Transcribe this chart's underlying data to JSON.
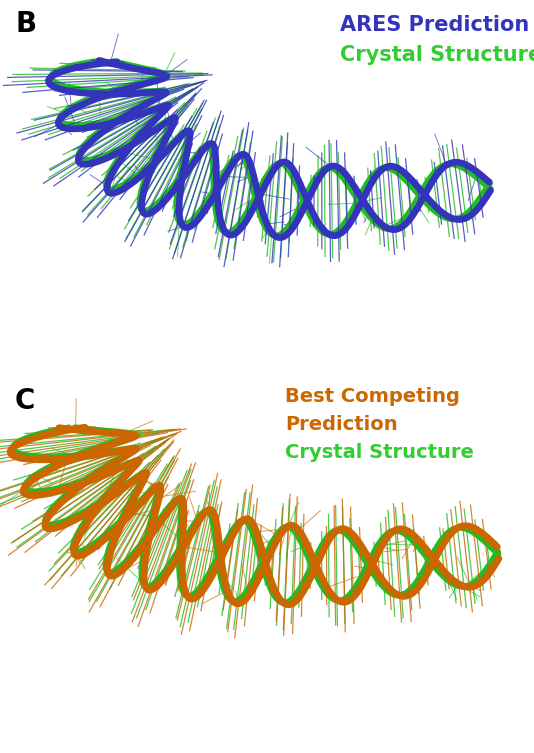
{
  "panel_B_label": "B",
  "panel_C_label": "C",
  "panel_B_title_line1": "ARES Prediction",
  "panel_B_title_line2": "Crystal Structure",
  "panel_C_title_line1": "Best Competing",
  "panel_C_title_line2": "Prediction",
  "panel_C_title_line3": "Crystal Structure",
  "color_blue": "#3333BB",
  "color_green": "#22BB22",
  "color_orange": "#CC6600",
  "color_green_bright": "#33CC33",
  "background": "#FFFFFF",
  "panel_label_fontsize": 20,
  "title_fontsize_B": 15,
  "title_fontsize_C": 14,
  "fig_width": 5.34,
  "fig_height": 7.53,
  "helix_lw": 4.5,
  "stick_lw": 0.9,
  "n_points": 1200,
  "n_turns_B": 5.5,
  "n_turns_C": 6.0
}
